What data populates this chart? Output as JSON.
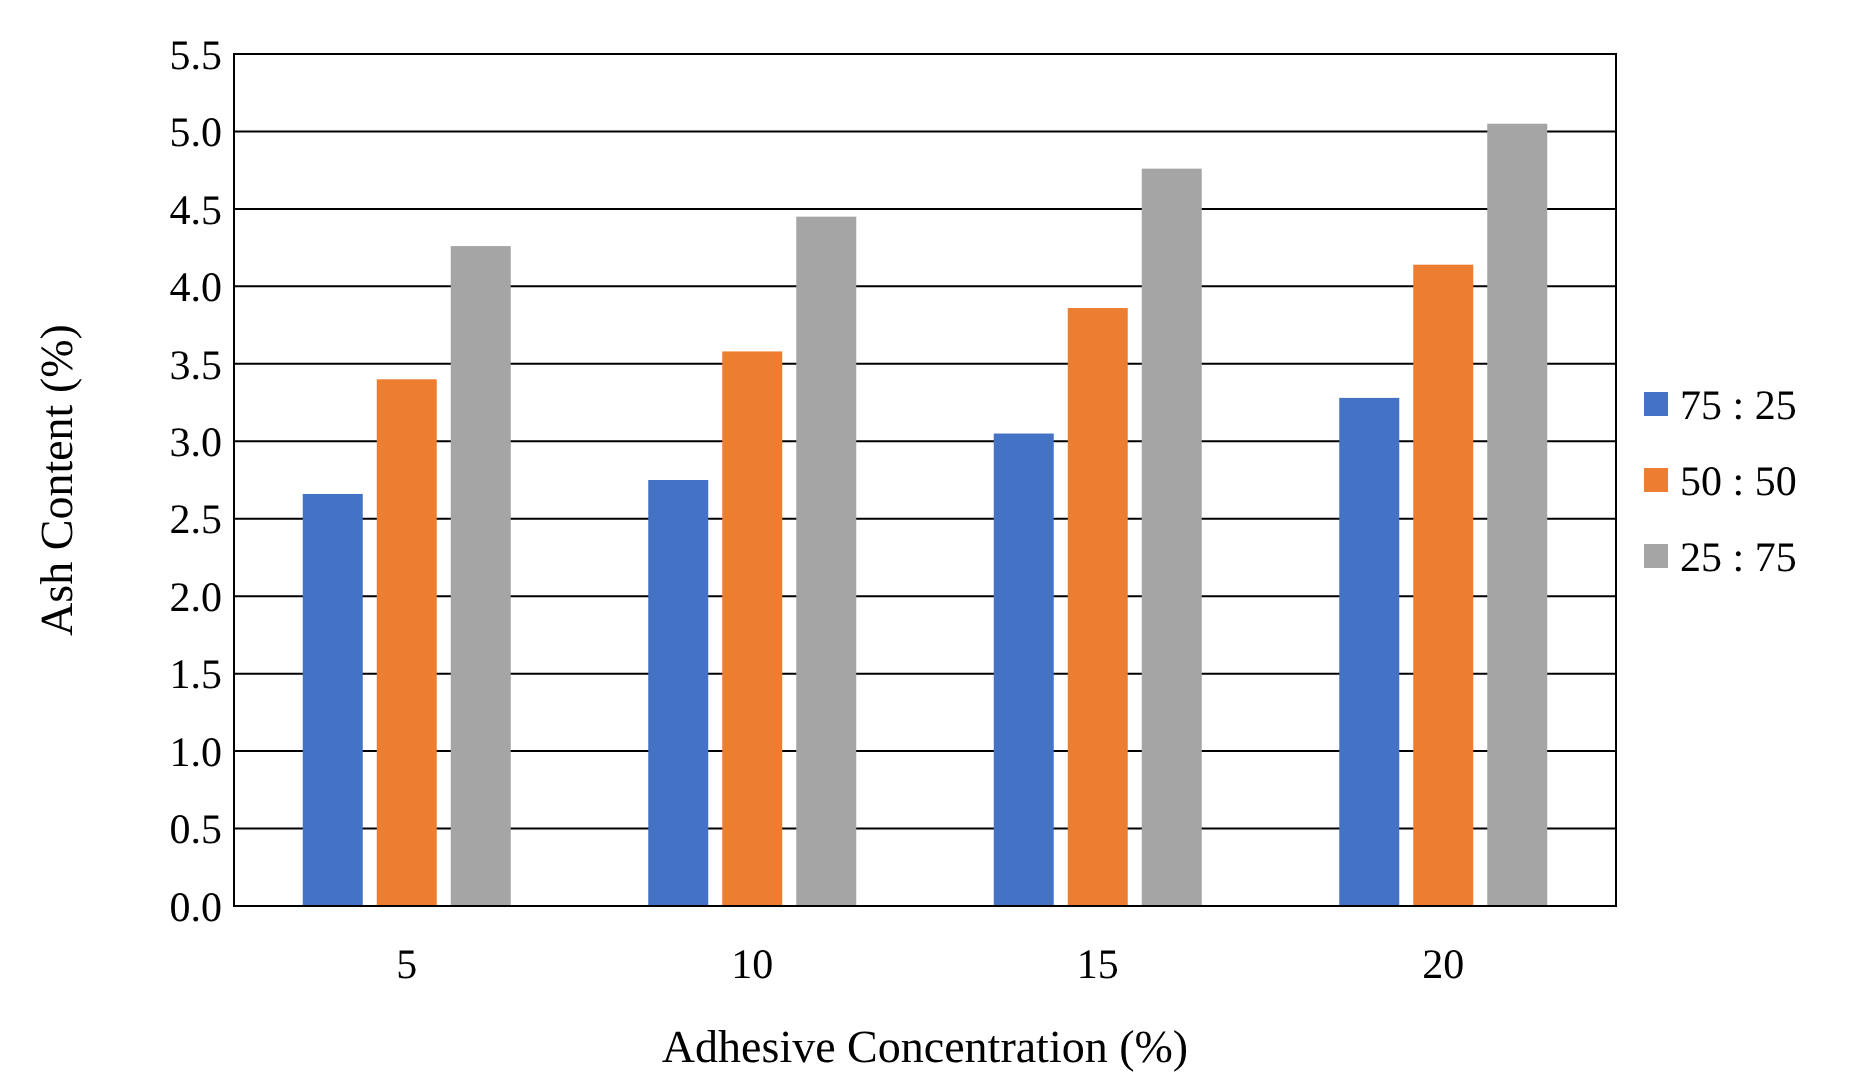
{
  "chart_data": {
    "type": "bar",
    "xlabel": "Adhesive Concentration (%)",
    "ylabel": "Ash Content (%)",
    "categories": [
      "5",
      "10",
      "15",
      "20"
    ],
    "series": [
      {
        "name": "75 : 25",
        "color": "#4472c4",
        "values": [
          2.66,
          2.75,
          3.05,
          3.28
        ]
      },
      {
        "name": "50 : 50",
        "color": "#ed7d31",
        "values": [
          3.4,
          3.58,
          3.86,
          4.14
        ]
      },
      {
        "name": "25 : 75",
        "color": "#a5a5a5",
        "values": [
          4.26,
          4.45,
          4.76,
          5.05
        ]
      }
    ],
    "ylim": [
      0,
      5.5
    ],
    "yticks": [
      {
        "value": 0,
        "label": "0.0"
      },
      {
        "value": 0.5,
        "label": "0.5"
      },
      {
        "value": 1,
        "label": "1.0"
      },
      {
        "value": 1.5,
        "label": "1.5"
      },
      {
        "value": 2,
        "label": "2.0"
      },
      {
        "value": 2.5,
        "label": "2.5"
      },
      {
        "value": 3,
        "label": "3.0"
      },
      {
        "value": 3.5,
        "label": "3.5"
      },
      {
        "value": 4,
        "label": "4.0"
      },
      {
        "value": 4.5,
        "label": "4.5"
      },
      {
        "value": 5,
        "label": "5.0"
      },
      {
        "value": 5.5,
        "label": "5.5"
      }
    ],
    "grid": "y",
    "legend": "right"
  }
}
